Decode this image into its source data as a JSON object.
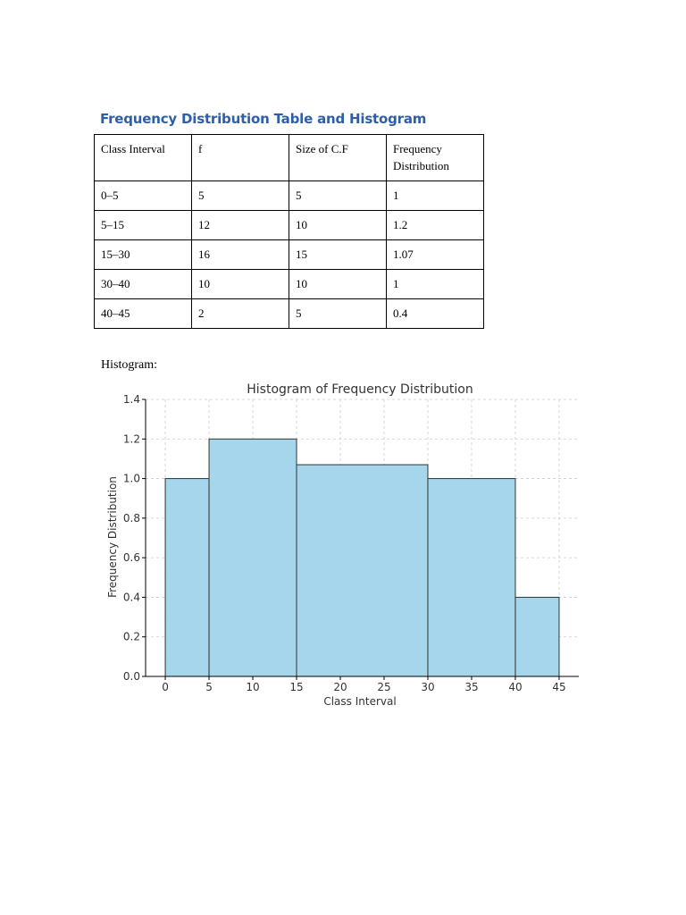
{
  "document": {
    "title": "Frequency Distribution Table and Histogram",
    "histogram_label": "Histogram:"
  },
  "table": {
    "headers": [
      "Class Interval",
      "f",
      "Size of C.F",
      "Frequency Distribution"
    ],
    "rows": [
      [
        "0–5",
        "5",
        "5",
        "1"
      ],
      [
        "5–15",
        "12",
        "10",
        "1.2"
      ],
      [
        "15–30",
        "16",
        "15",
        "1.07"
      ],
      [
        "30–40",
        "10",
        "10",
        "1"
      ],
      [
        "40–45",
        "2",
        "5",
        "0.4"
      ]
    ]
  },
  "chart_data": {
    "type": "bar",
    "title": "Histogram of Frequency Distribution",
    "xlabel": "Class Interval",
    "ylabel": "Frequency Distribution",
    "bins": [
      {
        "start": 0,
        "end": 5,
        "value": 1.0
      },
      {
        "start": 5,
        "end": 15,
        "value": 1.2
      },
      {
        "start": 15,
        "end": 30,
        "value": 1.07
      },
      {
        "start": 30,
        "end": 40,
        "value": 1.0
      },
      {
        "start": 40,
        "end": 45,
        "value": 0.4
      }
    ],
    "xlim": [
      -2.25,
      47.25
    ],
    "ylim": [
      0,
      1.4
    ],
    "xticks": [
      0,
      5,
      10,
      15,
      20,
      25,
      30,
      35,
      40,
      45
    ],
    "yticks": [
      0.0,
      0.2,
      0.4,
      0.6,
      0.8,
      1.0,
      1.2,
      1.4
    ],
    "ytick_labels": [
      "0.0",
      "0.2",
      "0.4",
      "0.6",
      "0.8",
      "1.0",
      "1.2",
      "1.4"
    ],
    "grid": true,
    "colors": {
      "bar_fill": "#a6d6ec",
      "bar_edge": "#333333",
      "grid": "#cccccc"
    }
  }
}
